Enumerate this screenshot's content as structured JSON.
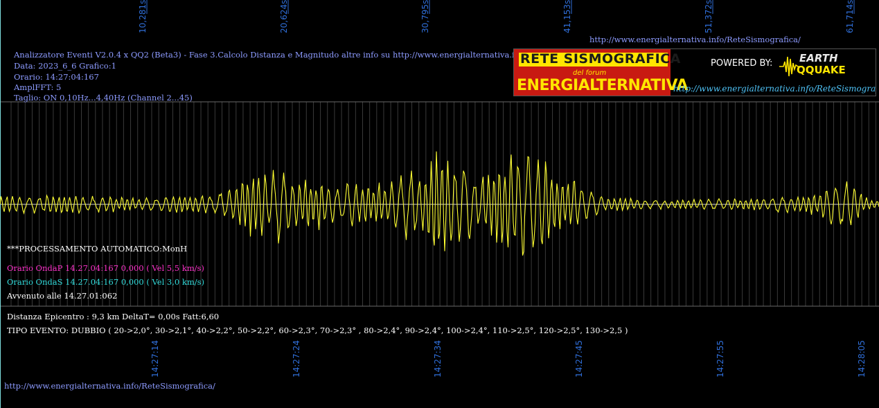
{
  "header": {
    "line1": "Analizzatore Eventi V2.0.4 x QQ2 (Beta3) - Fase 3.Calcolo Distanza e Magnitudo altre info su http://www.energialternativa.info/ReteSism",
    "line2": "Data: 2023_6_6 Grafico:1",
    "line3": "Orario: 14:27:04:167",
    "line4": "AmplFFT: 5",
    "line5": "Taglio: ON 0,10Hz...4,40Hz       (Channel 2...45)"
  },
  "top_url": "http://www.energialternativa.info/ReteSismografica/",
  "logo": {
    "title1": "RETE SISMOGRAFICA",
    "title2": "del forum",
    "title3": "ENERGIALTERNATIVA",
    "powered": "POWERED BY:",
    "eq_line1": "EARTH",
    "eq_line2": "QQUAKE",
    "url": "http://www.energialternativa.info/ReteSismografica"
  },
  "info": {
    "processing": "***PROCESSAMENTO AUTOMATICO:MonH",
    "onda_p": "Orario OndaP 14.27.04:167  0,000 ( Vel 5,5 km/s)",
    "onda_s": "Orario OndaS 14.27.04:167  0,000 ( Vel 3,0 km/s)",
    "avvenuto": "Avvenuto alle 14.27.01:062",
    "distanza": "Distanza Epicentro : 9,3 km DeltaT= 0,00s  Fatt:6,60",
    "tipo": "TIPO EVENTO: DUBBIO ( 20->2,0°, 30->2,1°, 40->2,2°, 50->2,2°, 60->2,3°, 70->2,3° , 80->2,4°, 90->2,4°, 100->2,4°, 110->2,5°, 120->2,5°, 130->2,5 )"
  },
  "bottom_url": "http://www.energialternativa.info/ReteSismografica/",
  "colors": {
    "trace": "#ffff33",
    "axis_label": "#2f6ed8",
    "grid": "#3a3a3a",
    "ondaP": "#ff33cc",
    "ondaS": "#33dddd"
  },
  "chart_data": {
    "type": "line",
    "title": "",
    "xlabel": "",
    "ylabel": "",
    "top_ticks": [
      "10,281s",
      "20,624s",
      "30,795s",
      "41,153s",
      "51,372s",
      "61,714s"
    ],
    "bottom_ticks": [
      "14:27:14",
      "14:27:24",
      "14:27:34",
      "14:27:45",
      "14:27:55",
      "14:28:05"
    ],
    "x_range_s": [
      0,
      62.5
    ],
    "ylim": [
      -1,
      1
    ],
    "grid": true,
    "series": [
      {
        "x": [
          0,
          2,
          4,
          6,
          8,
          10,
          12,
          14,
          16,
          17,
          18,
          19,
          20,
          21,
          22,
          24,
          26,
          28,
          29,
          30,
          31,
          32,
          33,
          34,
          35,
          36,
          37,
          38,
          39,
          40,
          41,
          42,
          43,
          44,
          46,
          48,
          50,
          52,
          54,
          56,
          58,
          59,
          60,
          61,
          62
        ],
        "values": [
          0.15,
          -0.12,
          0.15,
          -0.12,
          0.12,
          -0.1,
          0.12,
          -0.12,
          0.2,
          -0.35,
          0.55,
          -0.4,
          0.6,
          -0.35,
          0.4,
          -0.3,
          0.3,
          -0.35,
          0.55,
          -0.5,
          0.75,
          -0.65,
          0.7,
          -0.4,
          0.6,
          -0.7,
          0.75,
          -0.7,
          0.65,
          -0.45,
          0.35,
          -0.2,
          0.1,
          -0.1,
          0.08,
          -0.06,
          0.08,
          -0.08,
          0.1,
          -0.12,
          0.15,
          -0.28,
          0.4,
          -0.2,
          0.05
        ]
      }
    ]
  }
}
